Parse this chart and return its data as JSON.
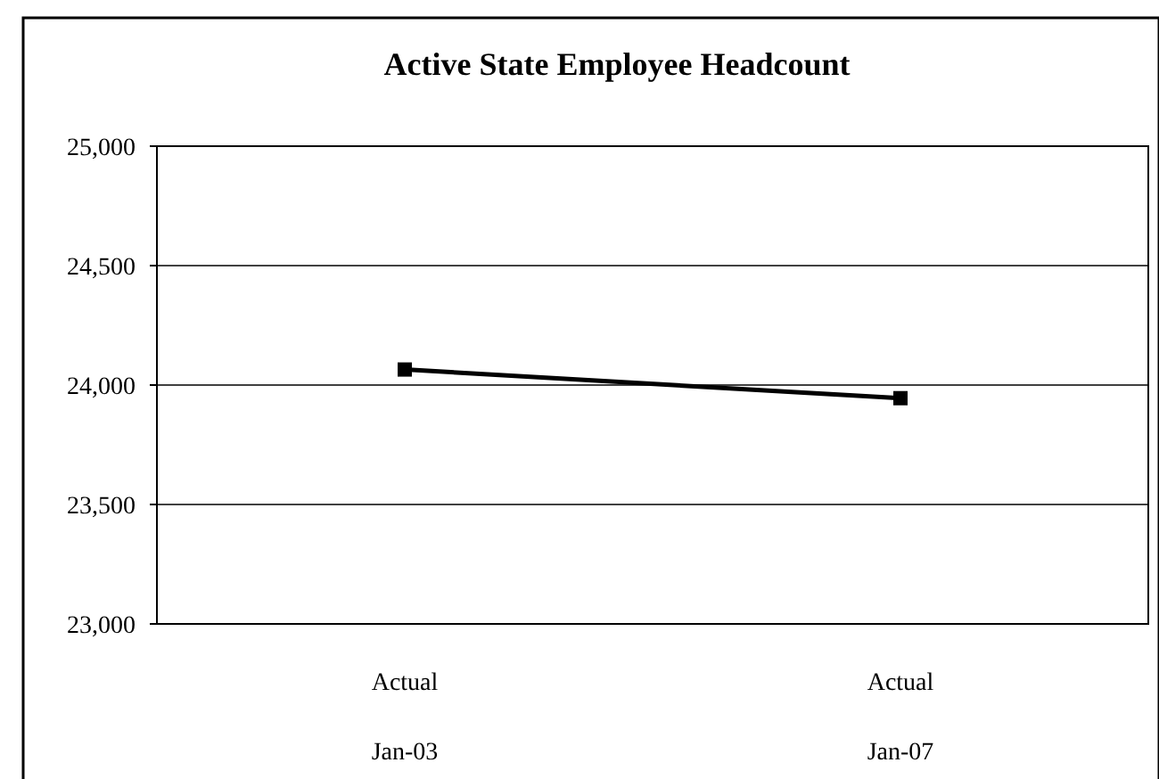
{
  "chart_data": {
    "type": "line",
    "title": "Active State Employee Headcount",
    "categories": [
      "Actual\nJan-03",
      "Actual\nJan-07"
    ],
    "series": [
      {
        "color": "#000000",
        "values": [
          24065,
          23945
        ]
      }
    ],
    "ylim": [
      23000,
      25000
    ],
    "yticks": [
      {
        "value": 23000,
        "label": "23,000"
      },
      {
        "value": 23500,
        "label": "23,500"
      },
      {
        "value": 24000,
        "label": "24,000"
      },
      {
        "value": 24500,
        "label": "24,500"
      },
      {
        "value": 25000,
        "label": "25,000"
      }
    ],
    "grid": "y",
    "marker": "square",
    "line_style": "solid"
  }
}
